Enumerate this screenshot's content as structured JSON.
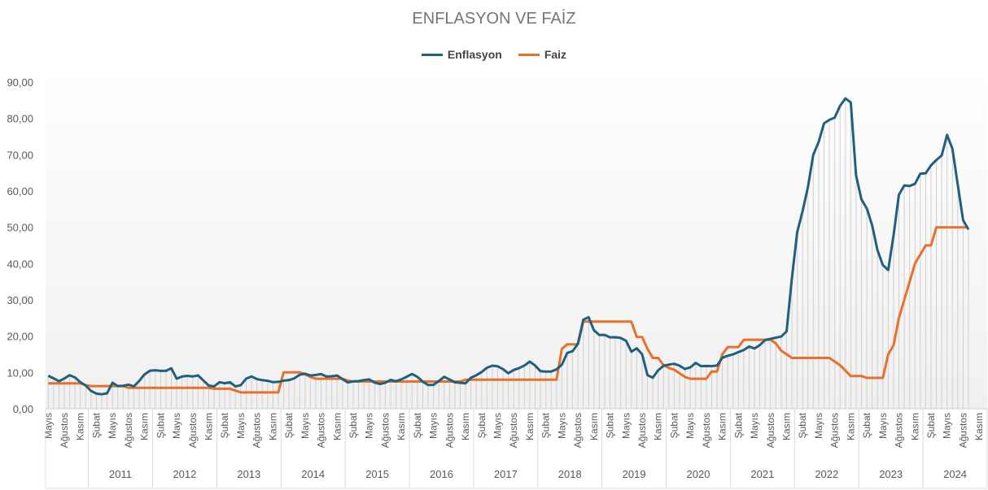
{
  "chart_data": {
    "type": "line",
    "title": "ENFLASYON VE FAİZ",
    "xlabel": "",
    "ylabel": "",
    "ylim": [
      0,
      90
    ],
    "yticks": [
      "0,00",
      "10,00",
      "20,00",
      "30,00",
      "40,00",
      "50,00",
      "60,00",
      "70,00",
      "80,00",
      "90,00"
    ],
    "legend_position": "top",
    "start": "2010-05",
    "month_labels": {
      "2": "Şubat",
      "5": "Mayıs",
      "8": "Ağustos",
      "11": "Kasım"
    },
    "years": [
      "",
      "2011",
      "2012",
      "2013",
      "2014",
      "2015",
      "2016",
      "2017",
      "2018",
      "2019",
      "2020",
      "2021",
      "2022",
      "2023",
      "2024"
    ],
    "total_months": 176,
    "series": [
      {
        "name": "Enflasyon",
        "color": "#1f5f7f",
        "values": [
          9.1,
          8.37,
          7.58,
          8.33,
          9.24,
          8.62,
          7.29,
          6.4,
          4.9,
          4.16,
          3.99,
          4.26,
          7.17,
          6.24,
          6.31,
          6.65,
          6.15,
          7.66,
          9.48,
          10.45,
          10.61,
          10.43,
          10.43,
          11.14,
          8.28,
          8.87,
          9.07,
          8.88,
          9.19,
          7.8,
          6.37,
          6.16,
          7.31,
          7.03,
          7.29,
          6.13,
          6.51,
          8.3,
          8.88,
          8.17,
          7.88,
          7.71,
          7.32,
          7.4,
          7.75,
          7.89,
          8.39,
          9.38,
          9.66,
          9.16,
          9.32,
          9.54,
          8.86,
          8.96,
          9.15,
          8.17,
          7.24,
          7.55,
          7.61,
          7.91,
          8.09,
          7.2,
          6.81,
          7.14,
          7.95,
          7.58,
          8.1,
          8.81,
          9.58,
          8.78,
          7.46,
          6.57,
          6.58,
          7.64,
          8.79,
          8.05,
          7.28,
          7.16,
          7.0,
          8.53,
          9.22,
          10.13,
          11.29,
          11.87,
          11.72,
          10.9,
          9.79,
          10.68,
          11.2,
          11.9,
          12.98,
          11.92,
          10.35,
          10.26,
          10.23,
          10.85,
          12.15,
          15.39,
          15.85,
          17.9,
          24.52,
          25.24,
          21.62,
          20.3,
          20.35,
          19.67,
          19.71,
          19.5,
          18.71,
          15.72,
          16.65,
          15.01,
          9.26,
          8.55,
          10.56,
          11.84,
          12.15,
          12.37,
          11.86,
          10.94,
          11.39,
          12.62,
          11.76,
          11.77,
          11.75,
          11.89,
          14.03,
          14.6,
          14.97,
          15.61,
          16.19,
          17.14,
          16.59,
          17.53,
          18.95,
          19.25,
          19.58,
          19.89,
          21.31,
          36.08,
          48.69,
          54.44,
          61.14,
          69.97,
          73.5,
          78.62,
          79.6,
          80.21,
          83.45,
          85.51,
          84.39,
          64.27,
          57.68,
          55.18,
          50.51,
          43.68,
          39.59,
          38.21,
          47.83,
          58.94,
          61.53,
          61.36,
          61.98,
          64.77,
          64.86,
          67.07,
          68.5,
          69.8,
          75.45,
          71.6,
          61.78,
          51.97,
          49.38
        ]
      },
      {
        "name": "Faiz",
        "color": "#e8702a",
        "values": [
          7,
          7,
          7,
          7,
          7,
          7,
          7,
          6.5,
          6.25,
          6.25,
          6.25,
          6.25,
          6.25,
          6.25,
          6.25,
          5.75,
          5.75,
          5.75,
          5.75,
          5.75,
          5.75,
          5.75,
          5.75,
          5.75,
          5.75,
          5.75,
          5.75,
          5.75,
          5.75,
          5.75,
          5.75,
          5.5,
          5.5,
          5.5,
          5.5,
          5.0,
          4.5,
          4.5,
          4.5,
          4.5,
          4.5,
          4.5,
          4.5,
          4.5,
          10,
          10,
          10,
          10,
          9.5,
          8.75,
          8.25,
          8.25,
          8.25,
          8.25,
          8.25,
          8.25,
          7.75,
          7.5,
          7.5,
          7.5,
          7.5,
          7.5,
          7.5,
          7.5,
          7.5,
          7.5,
          7.5,
          7.5,
          7.5,
          7.5,
          7.5,
          7.5,
          7.5,
          7.5,
          7.5,
          7.5,
          7.5,
          7.5,
          8,
          8,
          8,
          8,
          8,
          8,
          8,
          8,
          8,
          8,
          8,
          8,
          8,
          8,
          8,
          8,
          8,
          8,
          16.5,
          17.75,
          17.75,
          17.75,
          24,
          24,
          24,
          24,
          24,
          24,
          24,
          24,
          24,
          24,
          19.75,
          19.75,
          16.5,
          14,
          14,
          12,
          11.25,
          10.75,
          9.75,
          8.75,
          8.25,
          8.25,
          8.25,
          8.25,
          10.25,
          10.25,
          15,
          17,
          17,
          17,
          19,
          19,
          19,
          19,
          19,
          19,
          18,
          16,
          15,
          14,
          14,
          14,
          14,
          14,
          14,
          14,
          14,
          13,
          12,
          10.5,
          9,
          9,
          9,
          8.5,
          8.5,
          8.5,
          8.5,
          15,
          17.5,
          25,
          30,
          35,
          40,
          42.5,
          45,
          45,
          50,
          50,
          50,
          50,
          50,
          50,
          50
        ]
      }
    ]
  }
}
